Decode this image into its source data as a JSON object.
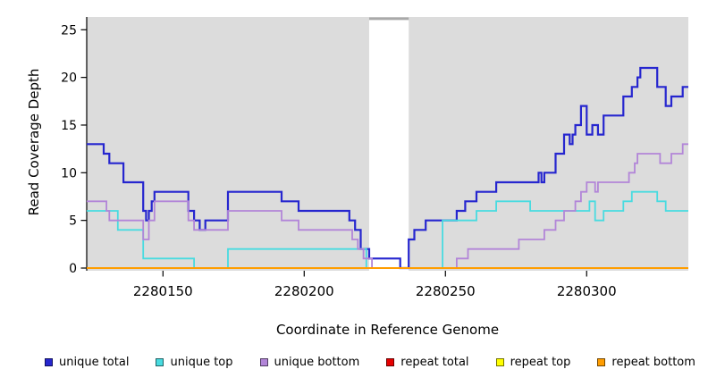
{
  "chart_data": {
    "type": "step-line",
    "title": "",
    "xlabel": "Coordinate in Reference Genome",
    "ylabel": "Read Coverage Depth",
    "xlim": [
      2280123,
      2280336
    ],
    "ylim": [
      0,
      26.6
    ],
    "xticks": [
      2280150,
      2280200,
      2280250,
      2280300
    ],
    "yticks": [
      0,
      5,
      10,
      15,
      20,
      25
    ],
    "grid": false,
    "legend_position": "bottom",
    "page_bg": "#ffffff",
    "panel_bg": "#dcdcdc",
    "axis_color": "#000000",
    "gap_band": {
      "from": 2280223,
      "to": 2280237,
      "color": "#ffffff",
      "cap_color": "#a9a9a9"
    },
    "series": [
      {
        "name": "unique total",
        "color": "#2626cf",
        "width": 2.2,
        "points": [
          [
            2280123,
            13
          ],
          [
            2280129,
            12
          ],
          [
            2280131,
            11
          ],
          [
            2280136,
            9
          ],
          [
            2280143,
            6
          ],
          [
            2280144,
            5
          ],
          [
            2280145,
            6
          ],
          [
            2280146,
            7
          ],
          [
            2280147,
            8
          ],
          [
            2280159,
            6
          ],
          [
            2280161,
            5
          ],
          [
            2280163,
            4
          ],
          [
            2280165,
            5
          ],
          [
            2280173,
            8
          ],
          [
            2280192,
            7
          ],
          [
            2280198,
            6
          ],
          [
            2280216,
            5
          ],
          [
            2280218,
            4
          ],
          [
            2280220,
            2
          ],
          [
            2280223,
            1
          ],
          [
            2280234,
            0
          ],
          [
            2280237,
            3
          ],
          [
            2280239,
            4
          ],
          [
            2280243,
            5
          ],
          [
            2280254,
            6
          ],
          [
            2280257,
            7
          ],
          [
            2280261,
            8
          ],
          [
            2280268,
            9
          ],
          [
            2280283,
            10
          ],
          [
            2280284,
            9
          ],
          [
            2280285,
            10
          ],
          [
            2280289,
            12
          ],
          [
            2280292,
            14
          ],
          [
            2280294,
            13
          ],
          [
            2280295,
            14
          ],
          [
            2280296,
            15
          ],
          [
            2280298,
            17
          ],
          [
            2280300,
            14
          ],
          [
            2280302,
            15
          ],
          [
            2280304,
            14
          ],
          [
            2280306,
            16
          ],
          [
            2280313,
            18
          ],
          [
            2280316,
            19
          ],
          [
            2280318,
            20
          ],
          [
            2280319,
            21
          ],
          [
            2280325,
            19
          ],
          [
            2280328,
            17
          ],
          [
            2280330,
            18
          ],
          [
            2280334,
            19
          ]
        ]
      },
      {
        "name": "unique top",
        "color": "#48dbe0",
        "width": 1.8,
        "points": [
          [
            2280123,
            6
          ],
          [
            2280134,
            4
          ],
          [
            2280143,
            1
          ],
          [
            2280161,
            0
          ],
          [
            2280173,
            2
          ],
          [
            2280222,
            0
          ],
          [
            2280249,
            5
          ],
          [
            2280261,
            6
          ],
          [
            2280268,
            7
          ],
          [
            2280280,
            6
          ],
          [
            2280301,
            7
          ],
          [
            2280303,
            5
          ],
          [
            2280306,
            6
          ],
          [
            2280313,
            7
          ],
          [
            2280316,
            8
          ],
          [
            2280325,
            7
          ],
          [
            2280328,
            6
          ]
        ]
      },
      {
        "name": "unique bottom",
        "color": "#b285d8",
        "width": 1.8,
        "points": [
          [
            2280123,
            7
          ],
          [
            2280130,
            6
          ],
          [
            2280131,
            5
          ],
          [
            2280143,
            3
          ],
          [
            2280145,
            5
          ],
          [
            2280147,
            7
          ],
          [
            2280159,
            5
          ],
          [
            2280161,
            4
          ],
          [
            2280173,
            6
          ],
          [
            2280192,
            5
          ],
          [
            2280198,
            4
          ],
          [
            2280217,
            3
          ],
          [
            2280219,
            2
          ],
          [
            2280221,
            1
          ],
          [
            2280224,
            0
          ],
          [
            2280254,
            1
          ],
          [
            2280258,
            2
          ],
          [
            2280276,
            3
          ],
          [
            2280285,
            4
          ],
          [
            2280289,
            5
          ],
          [
            2280292,
            6
          ],
          [
            2280296,
            7
          ],
          [
            2280298,
            8
          ],
          [
            2280300,
            9
          ],
          [
            2280303,
            8
          ],
          [
            2280304,
            9
          ],
          [
            2280315,
            10
          ],
          [
            2280317,
            11
          ],
          [
            2280318,
            12
          ],
          [
            2280326,
            11
          ],
          [
            2280330,
            12
          ],
          [
            2280334,
            13
          ]
        ]
      },
      {
        "name": "repeat total",
        "color": "#e60000",
        "width": 1.8,
        "points": [
          [
            2280123,
            0
          ]
        ]
      },
      {
        "name": "repeat top",
        "color": "#ffff00",
        "width": 1.8,
        "points": [
          [
            2280123,
            0
          ]
        ]
      },
      {
        "name": "repeat bottom",
        "color": "#ff9d00",
        "width": 2.0,
        "points": [
          [
            2280123,
            0
          ]
        ]
      }
    ]
  }
}
